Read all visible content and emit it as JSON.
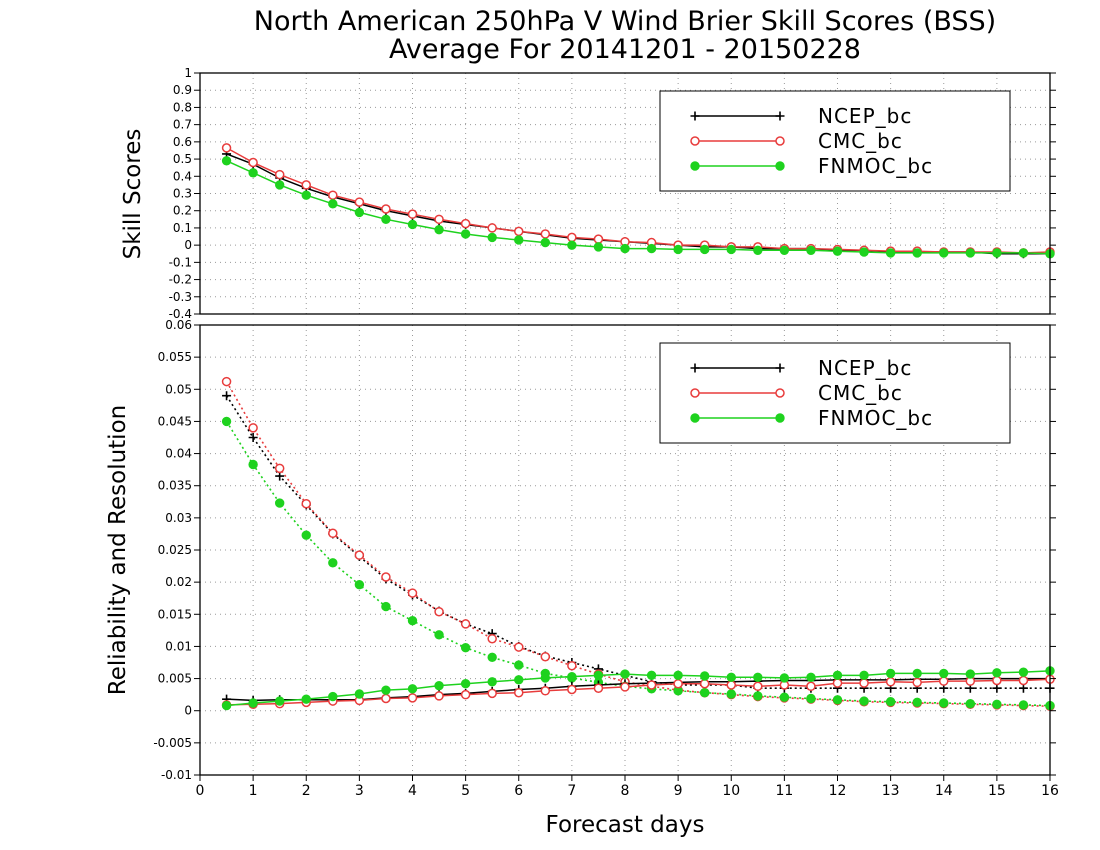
{
  "chart_data": {
    "title": "North American 250hPa V Wind Brier Skill Scores (BSS)",
    "subtitle": "Average For 20141201 - 20150228",
    "xlabel": "Forecast days",
    "x_ticks": [
      "0",
      "1",
      "2",
      "3",
      "4",
      "5",
      "6",
      "7",
      "8",
      "9",
      "10",
      "11",
      "12",
      "13",
      "14",
      "15",
      "16"
    ],
    "x": [
      0.5,
      1,
      1.5,
      2,
      2.5,
      3,
      3.5,
      4,
      4.5,
      5,
      5.5,
      6,
      6.5,
      7,
      7.5,
      8,
      8.5,
      9,
      9.5,
      10,
      10.5,
      11,
      11.5,
      12,
      12.5,
      13,
      13.5,
      14,
      14.5,
      15,
      15.5,
      16
    ],
    "colors": {
      "NCEP_bc": "#000000",
      "CMC_bc": "#e83c3c",
      "FNMOC_bc": "#1ed21e"
    },
    "panels": [
      {
        "type": "line",
        "ylabel": "Skill Scores",
        "ylim": [
          -0.4,
          1
        ],
        "y_ticks": [
          "-0.4",
          "-0.3",
          "-0.2",
          "-0.1",
          "0",
          "0.1",
          "0.2",
          "0.3",
          "0.4",
          "0.5",
          "0.6",
          "0.7",
          "0.8",
          "0.9",
          "1"
        ],
        "grid": true,
        "legend": {
          "position": "top-right",
          "entries": [
            "NCEP_bc",
            "CMC_bc",
            "FNMOC_bc"
          ]
        },
        "series": [
          {
            "name": "NCEP_bc",
            "marker": "plus",
            "style": "solid",
            "values": [
              0.53,
              0.47,
              0.39,
              0.33,
              0.28,
              0.24,
              0.2,
              0.17,
              0.14,
              0.12,
              0.1,
              0.08,
              0.06,
              0.04,
              0.03,
              0.02,
              0.01,
              0,
              -0.01,
              -0.01,
              -0.02,
              -0.02,
              -0.02,
              -0.03,
              -0.03,
              -0.04,
              -0.04,
              -0.04,
              -0.04,
              -0.05,
              -0.05,
              -0.05
            ]
          },
          {
            "name": "CMC_bc",
            "marker": "circle",
            "style": "solid",
            "values": [
              0.565,
              0.48,
              0.41,
              0.35,
              0.29,
              0.25,
              0.21,
              0.18,
              0.15,
              0.125,
              0.1,
              0.08,
              0.065,
              0.045,
              0.035,
              0.02,
              0.015,
              0,
              0,
              -0.01,
              -0.01,
              -0.02,
              -0.02,
              -0.025,
              -0.03,
              -0.035,
              -0.035,
              -0.04,
              -0.04,
              -0.04,
              -0.045,
              -0.04
            ]
          },
          {
            "name": "FNMOC_bc",
            "marker": "dot",
            "style": "solid",
            "values": [
              0.49,
              0.42,
              0.35,
              0.29,
              0.24,
              0.19,
              0.15,
              0.12,
              0.09,
              0.065,
              0.045,
              0.03,
              0.015,
              0,
              -0.01,
              -0.02,
              -0.02,
              -0.025,
              -0.025,
              -0.025,
              -0.03,
              -0.03,
              -0.03,
              -0.035,
              -0.04,
              -0.045,
              -0.045,
              -0.045,
              -0.045,
              -0.045,
              -0.045,
              -0.05
            ]
          }
        ]
      },
      {
        "type": "line",
        "ylabel": "Reliability and Resolution",
        "ylim": [
          -0.01,
          0.06
        ],
        "y_ticks": [
          "-0.01",
          "-0.005",
          "0",
          "0.005",
          "0.01",
          "0.015",
          "0.02",
          "0.025",
          "0.03",
          "0.035",
          "0.04",
          "0.045",
          "0.05",
          "0.055",
          "0.06"
        ],
        "grid": true,
        "legend": {
          "position": "top-right",
          "entries": [
            "NCEP_bc",
            "CMC_bc",
            "FNMOC_bc"
          ]
        },
        "series": [
          {
            "name": "NCEP_bc",
            "component": "resolution",
            "marker": "plus",
            "style": "dotted",
            "values": [
              0.049,
              0.0425,
              0.0365,
              0.032,
              0.0275,
              0.024,
              0.0205,
              0.018,
              0.0155,
              0.0135,
              0.012,
              0.01,
              0.0085,
              0.0075,
              0.0065,
              0.0055,
              0.0045,
              0.004,
              0.004,
              0.004,
              0.0035,
              0.0035,
              0.0035,
              0.0035,
              0.0035,
              0.0035,
              0.0035,
              0.0035,
              0.0035,
              0.0035,
              0.0035,
              0.0035
            ]
          },
          {
            "name": "CMC_bc",
            "component": "resolution",
            "marker": "circle",
            "style": "dotted",
            "values": [
              0.0512,
              0.044,
              0.0377,
              0.0322,
              0.0276,
              0.0242,
              0.0208,
              0.0183,
              0.0154,
              0.0135,
              0.0112,
              0.0099,
              0.0084,
              0.007,
              0.0057,
              0.0045,
              0.0038,
              0.0032,
              0.0028,
              0.0025,
              0.0022,
              0.002,
              0.0018,
              0.0016,
              0.0014,
              0.0013,
              0.0012,
              0.0011,
              0.001,
              0.0009,
              0.0008,
              0.0007
            ]
          },
          {
            "name": "FNMOC_bc",
            "component": "resolution",
            "marker": "dot",
            "style": "dotted",
            "values": [
              0.045,
              0.0383,
              0.0323,
              0.0273,
              0.023,
              0.0196,
              0.0162,
              0.014,
              0.0118,
              0.0098,
              0.0083,
              0.0071,
              0.0058,
              0.0051,
              0.0044,
              0.0038,
              0.0034,
              0.0031,
              0.0028,
              0.0026,
              0.0023,
              0.0021,
              0.0019,
              0.0017,
              0.0015,
              0.0014,
              0.0013,
              0.0012,
              0.0011,
              0.001,
              0.0009,
              0.0008
            ]
          },
          {
            "name": "NCEP_bc",
            "component": "reliability",
            "marker": "plus",
            "style": "solid",
            "values": [
              0.0018,
              0.0016,
              0.0017,
              0.0017,
              0.0017,
              0.0017,
              0.002,
              0.0022,
              0.0025,
              0.0027,
              0.003,
              0.0033,
              0.0035,
              0.0038,
              0.004,
              0.0042,
              0.0043,
              0.0044,
              0.0045,
              0.0045,
              0.0046,
              0.0047,
              0.0047,
              0.0048,
              0.0048,
              0.0048,
              0.0049,
              0.0049,
              0.005,
              0.005,
              0.005,
              0.005
            ]
          },
          {
            "name": "CMC_bc",
            "component": "reliability",
            "marker": "circle",
            "style": "solid",
            "values": [
              0.0009,
              0.001,
              0.0011,
              0.0013,
              0.0015,
              0.0016,
              0.0019,
              0.002,
              0.0023,
              0.0025,
              0.0027,
              0.0028,
              0.0031,
              0.0033,
              0.0035,
              0.0037,
              0.004,
              0.0042,
              0.0042,
              0.004,
              0.0038,
              0.004,
              0.0038,
              0.0043,
              0.0043,
              0.0045,
              0.0044,
              0.0046,
              0.0046,
              0.0047,
              0.0047,
              0.0049
            ]
          },
          {
            "name": "FNMOC_bc",
            "component": "reliability",
            "marker": "dot",
            "style": "solid",
            "values": [
              0.0008,
              0.0012,
              0.0015,
              0.0018,
              0.0022,
              0.0026,
              0.0032,
              0.0034,
              0.0039,
              0.0042,
              0.0045,
              0.0048,
              0.0051,
              0.0053,
              0.0055,
              0.0057,
              0.0055,
              0.0055,
              0.0054,
              0.0052,
              0.0052,
              0.0051,
              0.0052,
              0.0055,
              0.0055,
              0.0058,
              0.0058,
              0.0058,
              0.0057,
              0.0059,
              0.006,
              0.0062
            ]
          }
        ]
      }
    ]
  }
}
